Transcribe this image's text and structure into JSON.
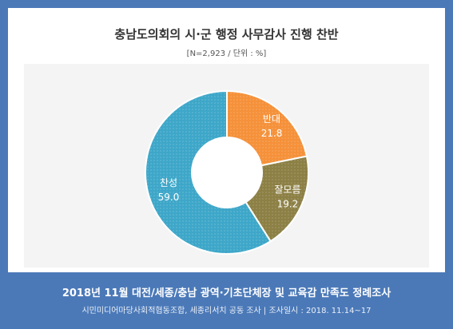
{
  "header": {
    "title": "충남도의회의 시·군 행정 사무감사 진행 찬반",
    "subtitle": "[N=2,923 / 단위 : %]"
  },
  "chart_data": {
    "type": "pie",
    "donut": true,
    "categories": [
      "반대",
      "잘모름",
      "찬성"
    ],
    "values": [
      21.8,
      19.2,
      59.0
    ],
    "value_labels": [
      "21.8",
      "19.2",
      "59.0"
    ],
    "colors": [
      "#f5913a",
      "#8d8045",
      "#3ea7c9"
    ]
  },
  "footer": {
    "title": "2018년 11월 대전/세종/충남 광역·기초단체장 및 교육감 만족도 정례조사",
    "source": "시민미디어마당사회적협동조합, 세종리서치 공동 조사 | 조사일시 : 2018. 11.14~17"
  }
}
